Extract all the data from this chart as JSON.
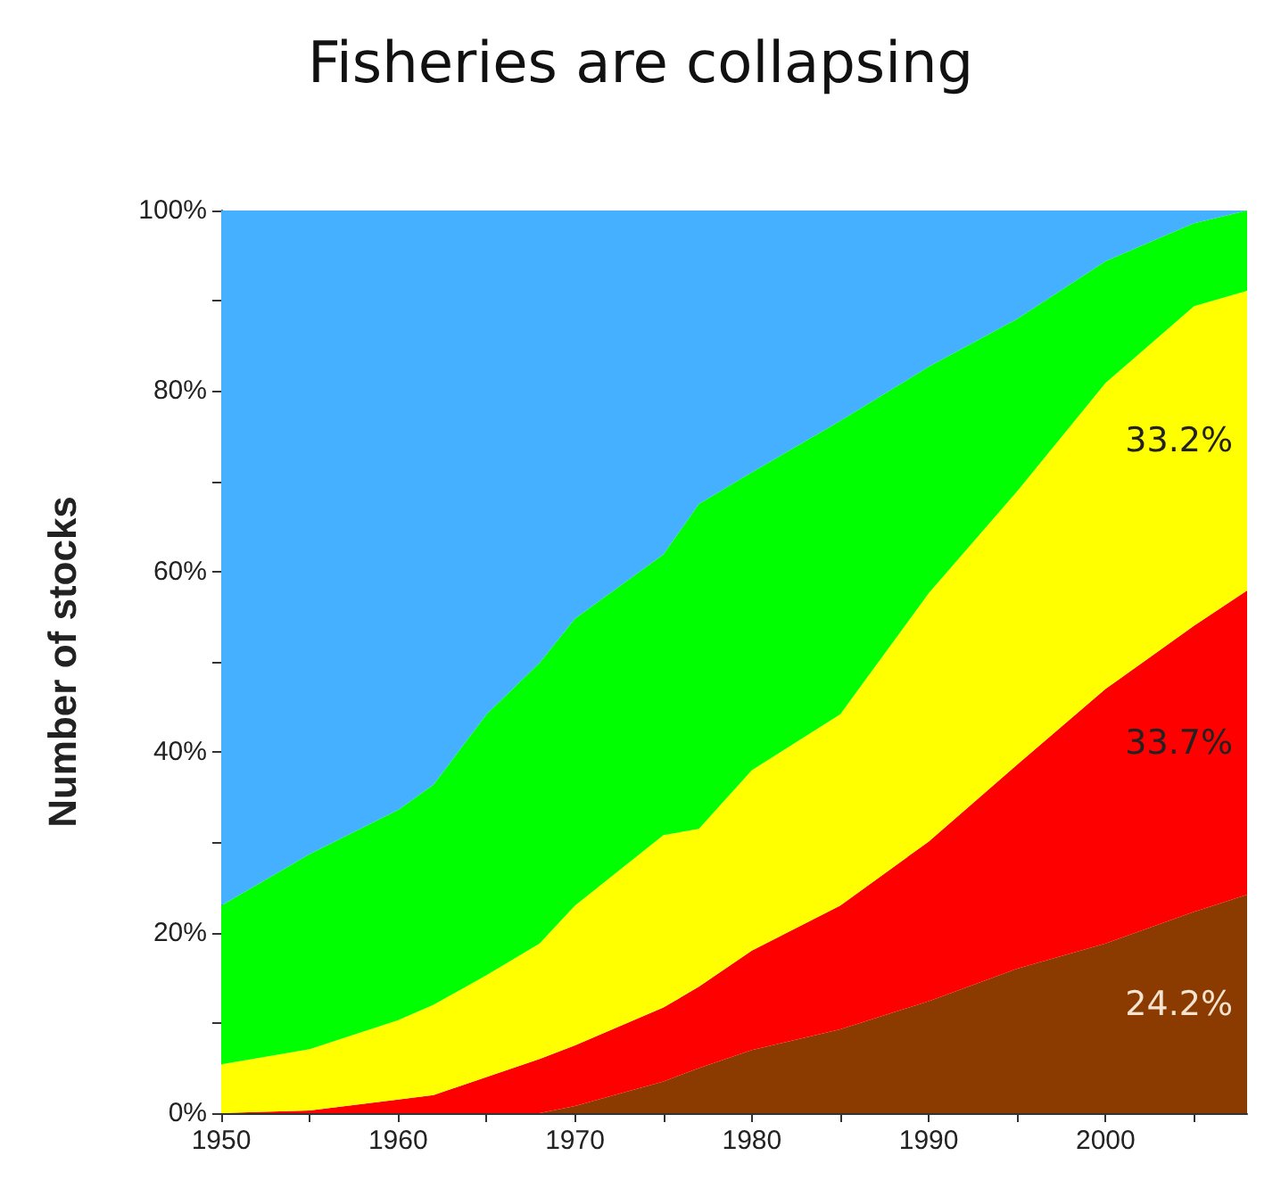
{
  "chart_data": {
    "type": "area",
    "title": "Fisheries are collapsing",
    "ylabel": "Number of stocks",
    "stacked": true,
    "x": [
      1950,
      1955,
      1960,
      1962,
      1965,
      1968,
      1970,
      1975,
      1977,
      1980,
      1985,
      1990,
      1995,
      2000,
      2005,
      2008
    ],
    "series": [
      {
        "color": "#8b3a00",
        "values": [
          0,
          0,
          0,
          0,
          0,
          0,
          0.8,
          3.5,
          5,
          7,
          9.3,
          12.4,
          16,
          18.8,
          22.3,
          24.2
        ]
      },
      {
        "color": "#ff0000",
        "values": [
          0,
          0.3,
          1.5,
          2,
          4,
          6,
          6.7,
          8.2,
          9,
          11,
          13.7,
          17.7,
          22.6,
          28.2,
          31.7,
          33.7
        ]
      },
      {
        "color": "#ffff00",
        "values": [
          5.4,
          6.8,
          8.8,
          10,
          11.3,
          12.8,
          15.5,
          19.1,
          17.5,
          20,
          21.2,
          27.5,
          30.3,
          33.9,
          35.4,
          33.2
        ]
      },
      {
        "color": "#00ff00",
        "values": [
          17.6,
          21.6,
          23.3,
          24.4,
          28.9,
          31.1,
          31.8,
          31.1,
          36,
          33,
          32.5,
          25.1,
          19.1,
          13.5,
          9.2,
          8.9
        ]
      },
      {
        "color": "#44b0ff",
        "values": [
          77,
          71.3,
          66.4,
          63.6,
          55.8,
          50.1,
          45.2,
          38.1,
          32.5,
          29,
          23.3,
          17.3,
          12,
          5.6,
          1.4,
          0
        ]
      }
    ],
    "annotations": [
      "24.2%",
      "33.7%",
      "33.2%"
    ],
    "xlim": [
      1950,
      2008
    ],
    "xticks": [
      1950,
      {
        "value": 1955,
        "label": null
      },
      1960,
      {
        "value": 1965,
        "label": null
      },
      1970,
      {
        "value": 1975,
        "label": null
      },
      1980,
      {
        "value": 1985,
        "label": null
      },
      1990,
      {
        "value": 1995,
        "label": null
      },
      2000,
      {
        "value": 2005,
        "label": null
      }
    ],
    "ylim": [
      0,
      100
    ],
    "yticks": [
      {
        "value": 0,
        "label": "0%"
      },
      {
        "value": 10,
        "label": null
      },
      {
        "value": 20,
        "label": "20%"
      },
      {
        "value": 30,
        "label": null
      },
      {
        "value": 40,
        "label": "40%"
      },
      {
        "value": 50,
        "label": null
      },
      {
        "value": 60,
        "label": "60%"
      },
      {
        "value": 70,
        "label": null
      },
      {
        "value": 80,
        "label": "80%"
      },
      {
        "value": 90,
        "label": null
      },
      {
        "value": 100,
        "label": "100%"
      }
    ],
    "grid": false
  }
}
